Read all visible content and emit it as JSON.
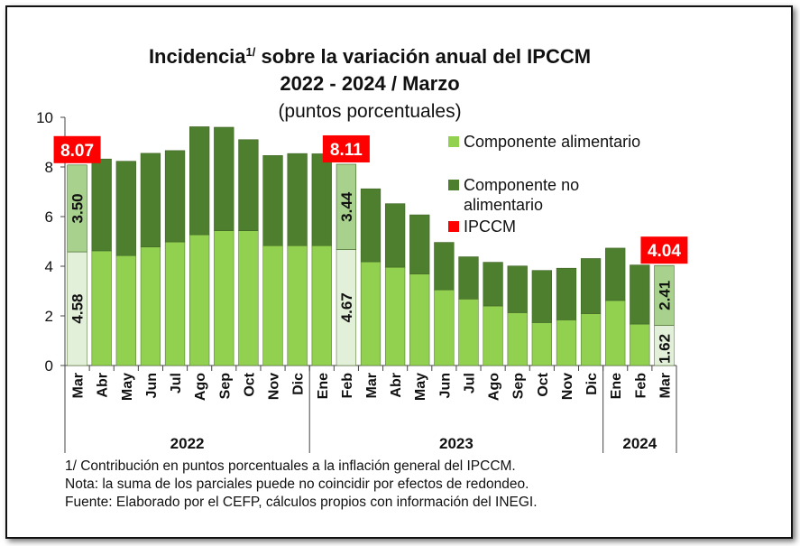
{
  "chart_data": {
    "type": "bar",
    "stacked": true,
    "title": "Incidencia",
    "title_sup": "1/",
    "title_rest": " sobre la variación anual del IPCCM",
    "title_line2": "2022 - 2024 / Marzo",
    "subtitle": "(puntos porcentuales)",
    "ylim": [
      0,
      10
    ],
    "yticks": [
      "0",
      "2",
      "4",
      "6",
      "8",
      "10"
    ],
    "categories": [
      "Mar",
      "Abr",
      "May",
      "Jun",
      "Jul",
      "Ago",
      "Sep",
      "Oct",
      "Nov",
      "Dic",
      "Ene",
      "Feb",
      "Mar",
      "Abr",
      "May",
      "Jun",
      "Jul",
      "Ago",
      "Sep",
      "Oct",
      "Nov",
      "Dic",
      "Ene",
      "Feb",
      "Mar"
    ],
    "years": [
      {
        "label": "2022",
        "start": 0,
        "end": 9
      },
      {
        "label": "2023",
        "start": 10,
        "end": 21
      },
      {
        "label": "2024",
        "start": 22,
        "end": 24
      }
    ],
    "series": [
      {
        "name": "Componente alimentario",
        "color": "#92d050",
        "values": [
          4.58,
          4.62,
          4.43,
          4.78,
          4.98,
          5.27,
          5.43,
          5.43,
          4.83,
          4.83,
          4.83,
          4.67,
          4.18,
          3.96,
          3.69,
          3.05,
          2.68,
          2.4,
          2.13,
          1.73,
          1.84,
          2.09,
          2.62,
          1.67,
          1.62
        ]
      },
      {
        "name": "Componente no alimentario",
        "color": "#4e7f2f",
        "values": [
          3.5,
          3.7,
          3.8,
          3.77,
          3.68,
          4.35,
          4.17,
          3.67,
          3.63,
          3.71,
          3.7,
          3.44,
          2.94,
          2.56,
          2.38,
          1.91,
          1.7,
          1.76,
          1.88,
          2.1,
          2.08,
          2.22,
          2.11,
          2.38,
          2.41
        ]
      }
    ],
    "highlighted": [
      0,
      11,
      24
    ],
    "highlight_food_color": "#e2efd9",
    "highlight_nonfood_color": "#a9d18e",
    "ipccm": [
      {
        "index": 0,
        "value": "8.07"
      },
      {
        "index": 11,
        "value": "8.11"
      },
      {
        "index": 24,
        "value": "4.04"
      }
    ],
    "ipccm_color": "#ff0000",
    "value_labels": [
      {
        "index": 0,
        "food": "4.58",
        "nonfood": "3.50"
      },
      {
        "index": 11,
        "food": "4.67",
        "nonfood": "3.44"
      },
      {
        "index": 24,
        "food": "1.62",
        "nonfood": "2.41"
      }
    ],
    "legend": [
      {
        "name": "Componente alimentario",
        "color": "#92d050"
      },
      {
        "name": "Componente no",
        "name2": "alimentario",
        "color": "#4e7f2f"
      },
      {
        "name": "IPCCM",
        "color": "#ff0000"
      }
    ]
  },
  "notes": [
    "1/ Contribución en puntos porcentuales a la inflación general del IPCCM.",
    "Nota: la suma de los parciales puede no coincidir por efectos de redondeo.",
    "Fuente: Elaborado por el CEFP, cálculos propios con información del INEGI."
  ]
}
